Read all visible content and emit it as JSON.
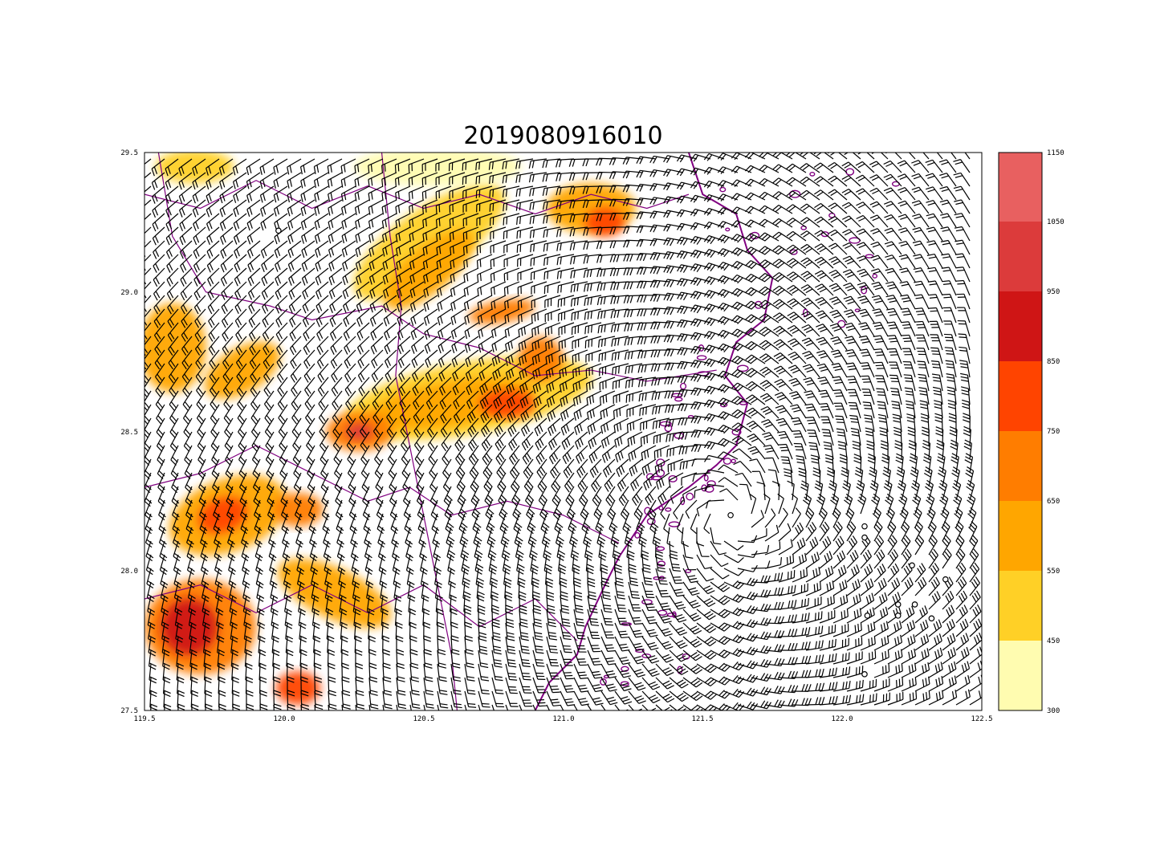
{
  "title": "2019080916010",
  "x_ticks": [
    "119.5",
    "120.0",
    "120.5",
    "121.0",
    "121.5",
    "122.0",
    "122.5"
  ],
  "y_ticks": [
    "29.5",
    "29.0",
    "28.5",
    "28.0",
    "27.5"
  ],
  "colorbar": {
    "levels": [
      "300",
      "450",
      "550",
      "650",
      "750",
      "850",
      "950",
      "1050",
      "1150"
    ],
    "colors": [
      "#fffcb0",
      "#ffd026",
      "#ffa600",
      "#ff7d00",
      "#ff4400",
      "#cf1515",
      "#dc3b3b",
      "#e86060"
    ]
  },
  "chart_data": {
    "type": "heatmap",
    "title": "2019080916010",
    "xlim": [
      119.5,
      122.5
    ],
    "ylim": [
      27.5,
      29.5
    ],
    "typhoon_center": [
      121.6,
      28.2
    ],
    "colors": {
      "coastline": "#800080",
      "barbs": "#000000"
    },
    "calm_points": [
      [
        119.98,
        29.22
      ],
      [
        121.6,
        28.2
      ],
      [
        122.08,
        28.16
      ],
      [
        122.08,
        28.12
      ],
      [
        122.25,
        28.02
      ],
      [
        122.37,
        27.97
      ],
      [
        122.2,
        27.88
      ],
      [
        122.26,
        27.88
      ],
      [
        122.2,
        27.84
      ],
      [
        122.32,
        27.83
      ],
      [
        122.09,
        27.84
      ],
      [
        122.08,
        27.63
      ]
    ],
    "terrain_blobs": [
      {
        "lon": 120.52,
        "lat": 29.18,
        "rx": 0.32,
        "ry": 0.12,
        "rot": -35,
        "level": 1
      },
      {
        "lon": 120.52,
        "lat": 29.08,
        "rx": 0.2,
        "ry": 0.08,
        "rot": -40,
        "level": 2
      },
      {
        "lon": 120.66,
        "lat": 28.62,
        "rx": 0.45,
        "ry": 0.13,
        "rot": -10,
        "level": 1
      },
      {
        "lon": 120.6,
        "lat": 28.6,
        "rx": 0.3,
        "ry": 0.08,
        "rot": -10,
        "level": 2
      },
      {
        "lon": 120.8,
        "lat": 28.6,
        "rx": 0.1,
        "ry": 0.05,
        "rot": 0,
        "level": 4
      },
      {
        "lon": 120.27,
        "lat": 28.5,
        "rx": 0.12,
        "ry": 0.07,
        "rot": 0,
        "level": 3
      },
      {
        "lon": 120.27,
        "lat": 28.5,
        "rx": 0.05,
        "ry": 0.03,
        "rot": 0,
        "level": 6
      },
      {
        "lon": 120.92,
        "lat": 28.76,
        "rx": 0.08,
        "ry": 0.08,
        "rot": 0,
        "level": 3
      },
      {
        "lon": 120.78,
        "lat": 28.93,
        "rx": 0.12,
        "ry": 0.04,
        "rot": -10,
        "level": 3
      },
      {
        "lon": 121.1,
        "lat": 29.3,
        "rx": 0.16,
        "ry": 0.09,
        "rot": 0,
        "level": 2
      },
      {
        "lon": 121.15,
        "lat": 29.25,
        "rx": 0.07,
        "ry": 0.05,
        "rot": 0,
        "level": 4
      },
      {
        "lon": 119.6,
        "lat": 28.8,
        "rx": 0.12,
        "ry": 0.16,
        "rot": 0,
        "level": 2
      },
      {
        "lon": 119.85,
        "lat": 28.72,
        "rx": 0.15,
        "ry": 0.08,
        "rot": -30,
        "level": 2
      },
      {
        "lon": 119.8,
        "lat": 28.2,
        "rx": 0.22,
        "ry": 0.13,
        "rot": -20,
        "level": 2
      },
      {
        "lon": 119.78,
        "lat": 28.2,
        "rx": 0.09,
        "ry": 0.06,
        "rot": -20,
        "level": 4
      },
      {
        "lon": 120.05,
        "lat": 28.22,
        "rx": 0.09,
        "ry": 0.06,
        "rot": 0,
        "level": 3
      },
      {
        "lon": 119.7,
        "lat": 27.8,
        "rx": 0.2,
        "ry": 0.17,
        "rot": 0,
        "level": 3
      },
      {
        "lon": 119.66,
        "lat": 27.8,
        "rx": 0.1,
        "ry": 0.1,
        "rot": 0,
        "level": 5
      },
      {
        "lon": 120.18,
        "lat": 27.92,
        "rx": 0.22,
        "ry": 0.09,
        "rot": 25,
        "level": 2
      },
      {
        "lon": 120.05,
        "lat": 27.58,
        "rx": 0.08,
        "ry": 0.06,
        "rot": 0,
        "level": 4
      },
      {
        "lon": 120.55,
        "lat": 29.45,
        "rx": 0.3,
        "ry": 0.07,
        "rot": 0,
        "level": 0
      },
      {
        "lon": 119.68,
        "lat": 29.45,
        "rx": 0.14,
        "ry": 0.06,
        "rot": 0,
        "level": 1
      }
    ]
  }
}
